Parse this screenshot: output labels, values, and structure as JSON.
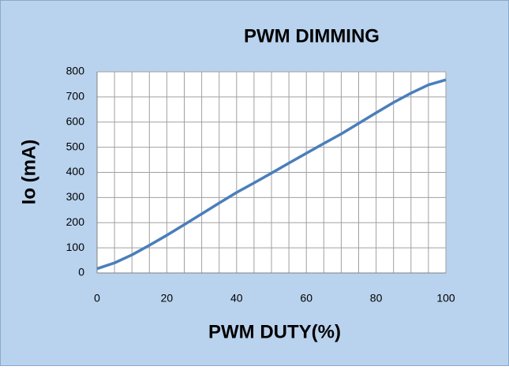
{
  "chart_data": {
    "type": "line",
    "title": "PWM DIMMING",
    "x_label": "PWM DUTY(%)",
    "y_label": "Io (mA)",
    "series": [
      {
        "name": "Io",
        "color": "#4a7ebb",
        "x": [
          0,
          5,
          10,
          15,
          20,
          25,
          30,
          35,
          40,
          45,
          50,
          55,
          60,
          65,
          70,
          75,
          80,
          85,
          90,
          95,
          100
        ],
        "values": [
          17,
          40,
          72,
          110,
          150,
          192,
          235,
          278,
          320,
          358,
          397,
          437,
          476,
          515,
          553,
          595,
          637,
          678,
          715,
          748,
          768
        ]
      }
    ],
    "xlim": [
      0,
      100
    ],
    "xticks": [
      0,
      20,
      40,
      60,
      80,
      100
    ],
    "xgrid": [
      0,
      5,
      10,
      15,
      20,
      25,
      30,
      35,
      40,
      45,
      50,
      55,
      60,
      65,
      70,
      75,
      80,
      85,
      90,
      95,
      100
    ],
    "ylim": [
      0,
      800
    ],
    "yticks": [
      0,
      100,
      200,
      300,
      400,
      500,
      600,
      700,
      800
    ],
    "grid": true
  }
}
